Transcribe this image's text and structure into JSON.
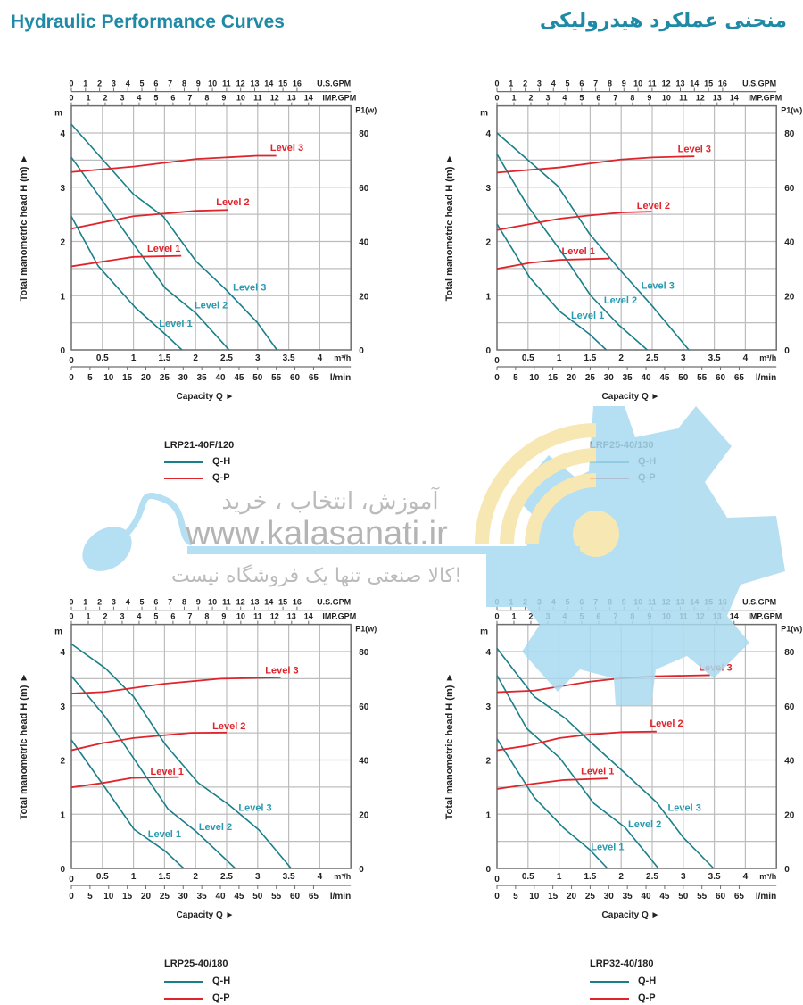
{
  "header": {
    "title_en": "Hydraulic Performance Curves",
    "title_fa": "منحنی عملکرد هیدرولیکی"
  },
  "watermark": {
    "line1": "آموزش، انتخاب ، خرید",
    "url": "www.kalasanati.ir",
    "line3": "کالا صنعتی تنها یک فروشگاه نیست!"
  },
  "colors": {
    "q_h": "#1a7f8a",
    "q_p": "#e0242c",
    "q_h_label": "#2a9ab0",
    "title": "#1f8aa6"
  },
  "chart_data": [
    {
      "type": "line",
      "title": "LRP21-40F/120",
      "xlabel": "Capacity Q ►",
      "ylabel": "Total manometric head H (m) ►",
      "y_unit": "m",
      "y2_label": "P1(w)",
      "x_unit": "m³/h",
      "x2_unit": "l/min",
      "x_top_unit": "U.S.GPM",
      "x_top2_unit": "IMP.GPM",
      "xlim": [
        0,
        4.5
      ],
      "ylim": [
        0,
        4.5
      ],
      "y2lim": [
        0,
        90
      ],
      "grid": true,
      "x_ticks": [
        0,
        0.5,
        1,
        1.5,
        2,
        2.5,
        3,
        3.5,
        4
      ],
      "x2_ticks": [
        0,
        5,
        10,
        15,
        20,
        25,
        30,
        35,
        40,
        45,
        50,
        55,
        60,
        65
      ],
      "x_top_ticks": [
        0,
        1,
        2,
        3,
        4,
        5,
        6,
        7,
        8,
        9,
        10,
        11,
        12,
        13,
        14,
        15,
        16
      ],
      "x_top2_ticks": [
        0,
        1,
        2,
        3,
        4,
        5,
        6,
        7,
        8,
        9,
        10,
        11,
        12,
        13,
        14
      ],
      "y_ticks": [
        0,
        1,
        2,
        3,
        4
      ],
      "y2_ticks": [
        0,
        20,
        40,
        60,
        80
      ],
      "legend": [
        {
          "label": "Q-H",
          "color": "#1a7f8a"
        },
        {
          "label": "Q-P",
          "color": "#e0242c"
        }
      ],
      "series": [
        {
          "name": "Level 1",
          "kind": "Q-H",
          "points": [
            [
              0,
              2.46
            ],
            [
              0.43,
              1.55
            ],
            [
              1.03,
              0.78
            ],
            [
              1.51,
              0.29
            ],
            [
              1.78,
              0
            ]
          ]
        },
        {
          "name": "Level 2",
          "kind": "Q-H",
          "points": [
            [
              0,
              3.55
            ],
            [
              1.51,
              1.14
            ],
            [
              2.01,
              0.67
            ],
            [
              2.54,
              0
            ]
          ]
        },
        {
          "name": "Level 3",
          "kind": "Q-H",
          "points": [
            [
              0,
              4.16
            ],
            [
              1.0,
              2.87
            ],
            [
              1.48,
              2.46
            ],
            [
              2.01,
              1.63
            ],
            [
              2.49,
              1.11
            ],
            [
              2.99,
              0.51
            ],
            [
              3.31,
              0
            ]
          ]
        },
        {
          "name": "Level 1",
          "kind": "Q-P",
          "points": [
            [
              0,
              30.8
            ],
            [
              1.0,
              34.3
            ],
            [
              1.77,
              34.7
            ]
          ]
        },
        {
          "name": "Level 2",
          "kind": "Q-P",
          "points": [
            [
              0,
              44.7
            ],
            [
              1.0,
              49.3
            ],
            [
              2.01,
              51.3
            ],
            [
              2.52,
              51.6
            ]
          ]
        },
        {
          "name": "Level 3",
          "kind": "Q-P",
          "points": [
            [
              0,
              65.6
            ],
            [
              1.0,
              67.6
            ],
            [
              2.01,
              70.4
            ],
            [
              2.99,
              71.6
            ],
            [
              3.3,
              71.6
            ]
          ]
        }
      ]
    },
    {
      "type": "line",
      "title": "LRP25-40/130",
      "xlabel": "Capacity Q ►",
      "ylabel": "Total manometric head H (m) ►",
      "y_unit": "m",
      "y2_label": "P1(w)",
      "x_unit": "m³/h",
      "x2_unit": "l/min",
      "x_top_unit": "U.S.GPM",
      "x_top2_unit": "IMP.GPM",
      "xlim": [
        0,
        4.5
      ],
      "ylim": [
        0,
        4.5
      ],
      "y2lim": [
        0,
        90
      ],
      "grid": true,
      "x_ticks": [
        0,
        0.5,
        1,
        1.5,
        2,
        2.5,
        3,
        3.5,
        4
      ],
      "x2_ticks": [
        0,
        5,
        10,
        15,
        20,
        25,
        30,
        35,
        40,
        45,
        50,
        55,
        60,
        65
      ],
      "x_top_ticks": [
        0,
        1,
        2,
        3,
        4,
        5,
        6,
        7,
        8,
        9,
        10,
        11,
        12,
        13,
        14,
        15,
        16
      ],
      "x_top2_ticks": [
        0,
        1,
        2,
        3,
        4,
        5,
        6,
        7,
        8,
        9,
        10,
        11,
        12,
        13,
        14
      ],
      "y_ticks": [
        0,
        1,
        2,
        3,
        4
      ],
      "y2_ticks": [
        0,
        20,
        40,
        60,
        80
      ],
      "legend": [
        {
          "label": "Q-H",
          "color": "#1a7f8a"
        },
        {
          "label": "Q-P",
          "color": "#e0242c"
        }
      ],
      "series": [
        {
          "name": "Level 1",
          "kind": "Q-H",
          "points": [
            [
              0,
              2.32
            ],
            [
              0.53,
              1.33
            ],
            [
              1.01,
              0.71
            ],
            [
              1.49,
              0.29
            ],
            [
              1.76,
              0
            ]
          ]
        },
        {
          "name": "Level 2",
          "kind": "Q-H",
          "points": [
            [
              0,
              3.61
            ],
            [
              0.48,
              2.68
            ],
            [
              1.01,
              1.85
            ],
            [
              1.51,
              1.0
            ],
            [
              1.97,
              0.45
            ],
            [
              2.42,
              0
            ]
          ]
        },
        {
          "name": "Level 3",
          "kind": "Q-H",
          "points": [
            [
              0,
              4.0
            ],
            [
              0.98,
              3.02
            ],
            [
              1.49,
              2.14
            ],
            [
              1.97,
              1.49
            ],
            [
              2.5,
              0.81
            ],
            [
              3.09,
              0
            ]
          ]
        },
        {
          "name": "Level 1",
          "kind": "Q-P",
          "points": [
            [
              0,
              29.9
            ],
            [
              0.53,
              32.1
            ],
            [
              1.01,
              33.2
            ],
            [
              1.81,
              33.7
            ]
          ]
        },
        {
          "name": "Level 2",
          "kind": "Q-P",
          "points": [
            [
              0,
              44.2
            ],
            [
              1.01,
              48.4
            ],
            [
              1.49,
              49.6
            ],
            [
              2.02,
              50.7
            ],
            [
              2.49,
              51.0
            ]
          ]
        },
        {
          "name": "Level 3",
          "kind": "Q-P",
          "points": [
            [
              0,
              65.4
            ],
            [
              1.01,
              67.3
            ],
            [
              1.99,
              70.2
            ],
            [
              2.5,
              71.0
            ],
            [
              3.18,
              71.4
            ]
          ]
        }
      ]
    },
    {
      "type": "line",
      "title": "LRP25-40/180",
      "xlabel": "Capacity Q ►",
      "ylabel": "Total manometric head H (m) ►",
      "y_unit": "m",
      "y2_label": "P1(w)",
      "x_unit": "m³/h",
      "x2_unit": "l/min",
      "x_top_unit": "U.S.GPM",
      "x_top2_unit": "IMP.GPM",
      "xlim": [
        0,
        4.5
      ],
      "ylim": [
        0,
        4.5
      ],
      "y2lim": [
        0,
        90
      ],
      "grid": true,
      "x_ticks": [
        0,
        0.5,
        1,
        1.5,
        2,
        2.5,
        3,
        3.5,
        4
      ],
      "x2_ticks": [
        0,
        5,
        10,
        15,
        20,
        25,
        30,
        35,
        40,
        45,
        50,
        55,
        60,
        65
      ],
      "x_top_ticks": [
        0,
        1,
        2,
        3,
        4,
        5,
        6,
        7,
        8,
        9,
        10,
        11,
        12,
        13,
        14,
        15,
        16
      ],
      "x_top2_ticks": [
        0,
        1,
        2,
        3,
        4,
        5,
        6,
        7,
        8,
        9,
        10,
        11,
        12,
        13,
        14
      ],
      "y_ticks": [
        0,
        1,
        2,
        3,
        4
      ],
      "y2_ticks": [
        0,
        20,
        40,
        60,
        80
      ],
      "legend": [
        {
          "label": "Q-H",
          "color": "#1a7f8a"
        },
        {
          "label": "Q-P",
          "color": "#e0242c"
        }
      ],
      "series": [
        {
          "name": "Level 1",
          "kind": "Q-H",
          "points": [
            [
              0,
              2.37
            ],
            [
              0.5,
              1.56
            ],
            [
              1.01,
              0.72
            ],
            [
              1.51,
              0.32
            ],
            [
              1.81,
              0
            ]
          ]
        },
        {
          "name": "Level 2",
          "kind": "Q-H",
          "points": [
            [
              0,
              3.55
            ],
            [
              0.55,
              2.79
            ],
            [
              1.01,
              2.02
            ],
            [
              1.56,
              1.09
            ],
            [
              2.01,
              0.68
            ],
            [
              2.64,
              0
            ]
          ]
        },
        {
          "name": "Level 3",
          "kind": "Q-H",
          "points": [
            [
              0,
              4.14
            ],
            [
              0.55,
              3.69
            ],
            [
              1.0,
              3.17
            ],
            [
              1.51,
              2.29
            ],
            [
              2.04,
              1.58
            ],
            [
              2.54,
              1.17
            ],
            [
              3.02,
              0.71
            ],
            [
              3.54,
              0
            ]
          ]
        },
        {
          "name": "Level 1",
          "kind": "Q-P",
          "points": [
            [
              0,
              29.9
            ],
            [
              0.5,
              31.5
            ],
            [
              0.98,
              33.4
            ],
            [
              1.73,
              33.7
            ]
          ]
        },
        {
          "name": "Level 2",
          "kind": "Q-P",
          "points": [
            [
              0,
              43.6
            ],
            [
              0.5,
              46.2
            ],
            [
              1.0,
              48.1
            ],
            [
              1.92,
              50.0
            ],
            [
              2.5,
              50.1
            ]
          ]
        },
        {
          "name": "Level 3",
          "kind": "Q-P",
          "points": [
            [
              0,
              64.5
            ],
            [
              0.53,
              65.1
            ],
            [
              1.49,
              68.1
            ],
            [
              2.4,
              70.0
            ],
            [
              3.37,
              70.5
            ]
          ]
        }
      ]
    },
    {
      "type": "line",
      "title": "LRP32-40/180",
      "xlabel": "Capacity Q ►",
      "ylabel": "Total manometric head H (m) ►",
      "y_unit": "m",
      "y2_label": "P1(w)",
      "x_unit": "m³/h",
      "x2_unit": "l/min",
      "x_top_unit": "U.S.GPM",
      "x_top2_unit": "IMP.GPM",
      "xlim": [
        0,
        4.5
      ],
      "ylim": [
        0,
        4.5
      ],
      "y2lim": [
        0,
        90
      ],
      "grid": true,
      "x_ticks": [
        0,
        0.5,
        1,
        1.5,
        2,
        2.5,
        3,
        3.5,
        4
      ],
      "x2_ticks": [
        0,
        5,
        10,
        15,
        20,
        25,
        30,
        35,
        40,
        45,
        50,
        55,
        60,
        65
      ],
      "x_top_ticks": [
        0,
        1,
        2,
        3,
        4,
        5,
        6,
        7,
        8,
        9,
        10,
        11,
        12,
        13,
        14,
        15,
        16
      ],
      "x_top2_ticks": [
        0,
        1,
        2,
        3,
        4,
        5,
        6,
        7,
        8,
        9,
        10,
        11,
        12,
        13,
        14
      ],
      "y_ticks": [
        0,
        1,
        2,
        3,
        4
      ],
      "y2_ticks": [
        0,
        20,
        40,
        60,
        80
      ],
      "legend": [
        {
          "label": "Q-H",
          "color": "#1a7f8a"
        },
        {
          "label": "Q-P",
          "color": "#e0242c"
        }
      ],
      "series": [
        {
          "name": "Level 1",
          "kind": "Q-H",
          "points": [
            [
              0,
              2.39
            ],
            [
              0.6,
              1.31
            ],
            [
              1.08,
              0.74
            ],
            [
              1.49,
              0.35
            ],
            [
              1.78,
              0
            ]
          ]
        },
        {
          "name": "Level 2",
          "kind": "Q-H",
          "points": [
            [
              0,
              3.56
            ],
            [
              0.48,
              2.58
            ],
            [
              1.01,
              2.04
            ],
            [
              1.56,
              1.2
            ],
            [
              2.06,
              0.76
            ],
            [
              2.6,
              0
            ]
          ]
        },
        {
          "name": "Level 3",
          "kind": "Q-H",
          "points": [
            [
              0,
              4.06
            ],
            [
              0.6,
              3.17
            ],
            [
              1.1,
              2.77
            ],
            [
              1.49,
              2.35
            ],
            [
              2.02,
              1.8
            ],
            [
              2.57,
              1.22
            ],
            [
              3.0,
              0.57
            ],
            [
              3.49,
              0
            ]
          ]
        },
        {
          "name": "Level 1",
          "kind": "Q-P",
          "points": [
            [
              0,
              29.3
            ],
            [
              0.5,
              31.0
            ],
            [
              1.06,
              32.6
            ],
            [
              1.78,
              33.2
            ]
          ]
        },
        {
          "name": "Level 2",
          "kind": "Q-P",
          "points": [
            [
              0,
              43.6
            ],
            [
              0.5,
              45.3
            ],
            [
              1.01,
              48.1
            ],
            [
              1.49,
              49.4
            ],
            [
              2.02,
              50.3
            ],
            [
              2.57,
              50.5
            ]
          ]
        },
        {
          "name": "Level 3",
          "kind": "Q-P",
          "points": [
            [
              0,
              65.0
            ],
            [
              0.6,
              65.6
            ],
            [
              1.49,
              68.9
            ],
            [
              2.02,
              70.2
            ],
            [
              2.55,
              70.9
            ],
            [
              3.43,
              71.3
            ]
          ]
        }
      ]
    }
  ]
}
